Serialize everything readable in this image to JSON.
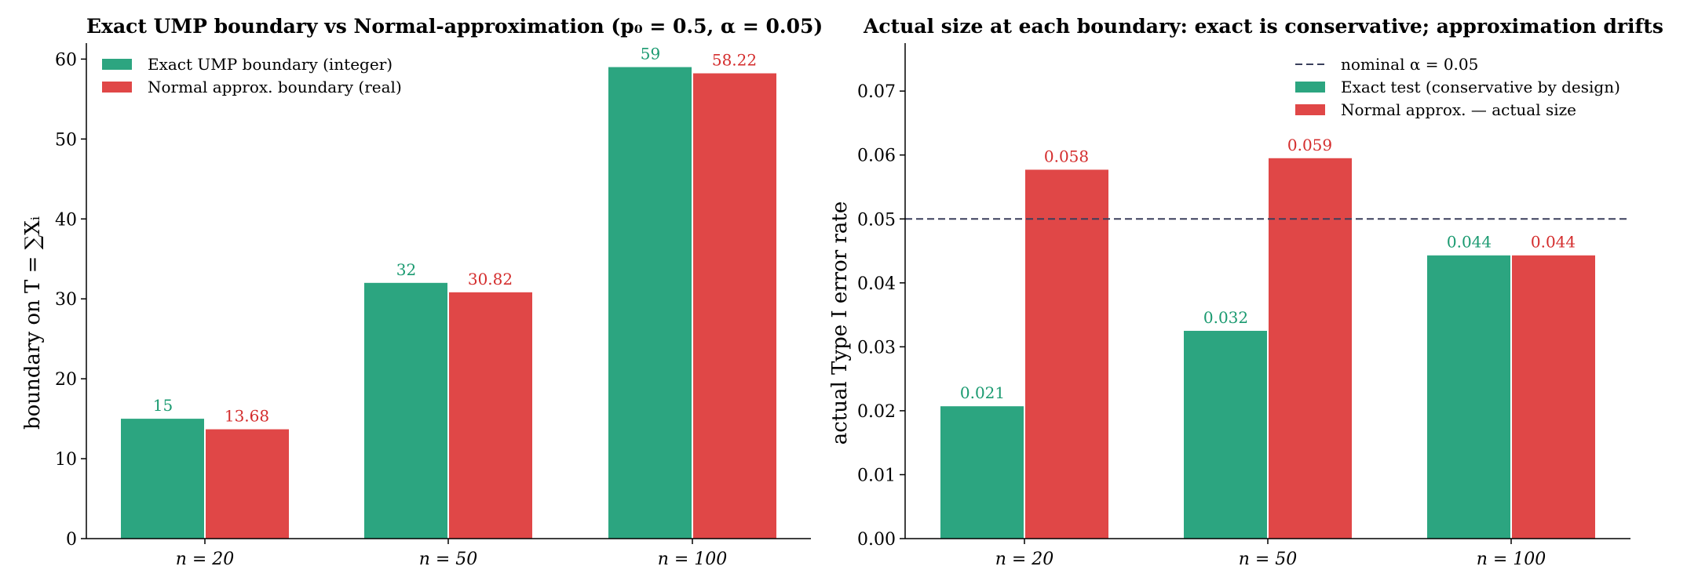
{
  "chart_data": [
    {
      "type": "bar",
      "title": "Exact UMP boundary vs Normal-approximation  (p₀ = 0.5,  α = 0.05)",
      "ylabel": "boundary on T = ∑Xᵢ",
      "xlabel": "",
      "categories": [
        "n = 20",
        "n = 50",
        "n = 100"
      ],
      "ylim": [
        0,
        62
      ],
      "yticks": [
        0,
        10,
        20,
        30,
        40,
        50,
        60
      ],
      "series": [
        {
          "name": "Exact UMP boundary (integer)",
          "values": [
            15,
            32,
            59
          ],
          "labels": [
            "15",
            "32",
            "59"
          ],
          "color": "#2ca580",
          "label_color": "#1a9a70"
        },
        {
          "name": "Normal approx. boundary (real)",
          "values": [
            13.68,
            30.82,
            58.22
          ],
          "labels": [
            "13.68",
            "30.82",
            "58.22"
          ],
          "color": "#e04747",
          "label_color": "#d42d2d"
        }
      ],
      "legend_position": "top-left",
      "grid": false
    },
    {
      "type": "bar",
      "title": "Actual size at each boundary: exact is conservative;  approximation drifts",
      "ylabel": "actual Type I error rate",
      "xlabel": "",
      "categories": [
        "n = 20",
        "n = 50",
        "n = 100"
      ],
      "ylim": [
        0,
        0.0775
      ],
      "yticks": [
        0.0,
        0.01,
        0.02,
        0.03,
        0.04,
        0.05,
        0.06,
        0.07
      ],
      "ytick_labels": [
        "0.00",
        "0.01",
        "0.02",
        "0.03",
        "0.04",
        "0.05",
        "0.06",
        "0.07"
      ],
      "reference_line": {
        "name": "nominal α = 0.05",
        "value": 0.05,
        "color": "#3a3f5c",
        "style": "dashed"
      },
      "series": [
        {
          "name": "Exact test (conservative by design)",
          "values": [
            0.0207,
            0.0325,
            0.0443
          ],
          "labels": [
            "0.021",
            "0.032",
            "0.044"
          ],
          "color": "#2ca580",
          "label_color": "#1a9a70"
        },
        {
          "name": "Normal approx. — actual size",
          "values": [
            0.0577,
            0.0595,
            0.0443
          ],
          "labels": [
            "0.058",
            "0.059",
            "0.044"
          ],
          "color": "#e04747",
          "label_color": "#d42d2d"
        }
      ],
      "legend_position": "top-right",
      "grid": false
    }
  ]
}
